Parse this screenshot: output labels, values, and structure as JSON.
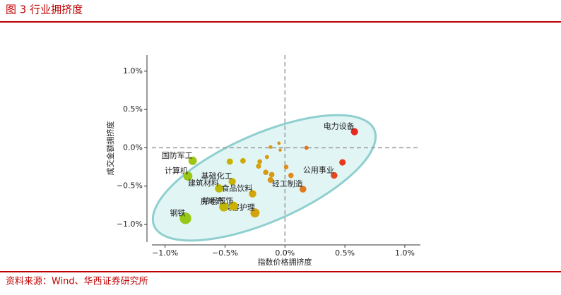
{
  "chart_data": {
    "type": "scatter",
    "title": "图 3 行业拥挤度",
    "source": "资料来源：Wind、华西证券研究所",
    "x_label": "指数价格拥挤度",
    "y_label": "成交金额拥挤度",
    "xlim": [
      -1.11,
      1.13
    ],
    "ylim": [
      -1.23,
      1.21
    ],
    "xticks": [
      {
        "value": -1.0,
        "label": "−1.0%"
      },
      {
        "value": -0.5,
        "label": "−0.5%"
      },
      {
        "value": 0.0,
        "label": "0.0%"
      },
      {
        "value": 0.5,
        "label": "0.5%"
      },
      {
        "value": 1.0,
        "label": "1.0%"
      }
    ],
    "yticks": [
      {
        "value": -1.0,
        "label": "−1.0%"
      },
      {
        "value": -0.5,
        "label": "−0.5%"
      },
      {
        "value": 0.0,
        "label": "0.0%"
      },
      {
        "value": 0.5,
        "label": "0.5%"
      },
      {
        "value": 1.0,
        "label": "1.0%"
      }
    ],
    "x": [
      0.58,
      0.48,
      0.41,
      0.15,
      -0.77,
      -0.81,
      -0.44,
      -0.55,
      -0.27,
      -0.83,
      -0.25,
      -0.51,
      -0.43,
      -0.46,
      -0.35,
      -0.12,
      -0.05,
      -0.04,
      0.18,
      -0.15,
      -0.21,
      -0.22,
      -0.16,
      -0.11,
      -0.12,
      0.01,
      0.05
    ],
    "values": [
      0.21,
      -0.19,
      -0.36,
      -0.54,
      -0.17,
      -0.37,
      -0.44,
      -0.53,
      -0.6,
      -0.92,
      -0.85,
      -0.77,
      -0.76,
      -0.18,
      -0.17,
      0.01,
      0.06,
      -0.03,
      0.0,
      -0.12,
      -0.18,
      -0.24,
      -0.32,
      -0.35,
      -0.42,
      -0.25,
      -0.36
    ],
    "labels": [
      "电力设备",
      null,
      "公用事业",
      "轻工制造",
      "国防军工",
      "计算机",
      "基础化工",
      "建筑材料",
      "食品饮料",
      "钢铁",
      "美容护理",
      "房地产",
      "纺织服饰",
      null,
      null,
      null,
      null,
      null,
      null,
      null,
      null,
      null,
      null,
      null,
      null,
      null,
      null
    ]
  }
}
